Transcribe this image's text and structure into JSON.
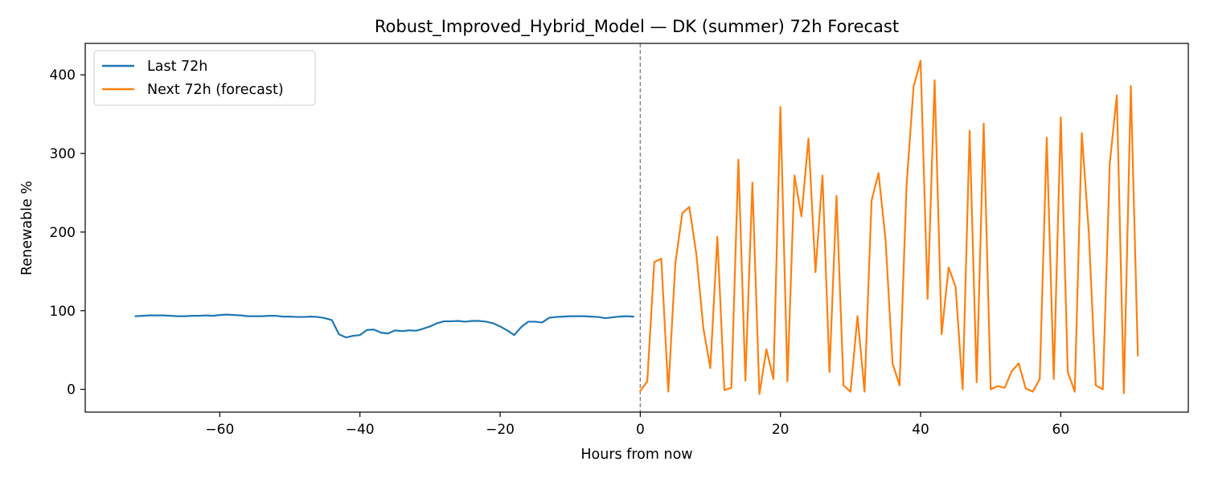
{
  "chart_data": {
    "type": "line",
    "title": "Robust_Improved_Hybrid_Model — DK (summer) 72h Forecast",
    "xlabel": "Hours from now",
    "ylabel": "Renewable %",
    "xlim": [
      -79.2,
      78.2
    ],
    "ylim": [
      -29,
      440
    ],
    "xticks": [
      -60,
      -40,
      -20,
      0,
      20,
      40,
      60
    ],
    "yticks": [
      0,
      100,
      200,
      300,
      400
    ],
    "grid": false,
    "legend_position": "top-left",
    "vline": {
      "x": 0,
      "style": "dashed",
      "color": "#808080"
    },
    "series": [
      {
        "name": "Last 72h",
        "color": "#1f77b4",
        "x": [
          -72,
          -71,
          -70,
          -69,
          -68,
          -67,
          -66,
          -65,
          -64,
          -63,
          -62,
          -61,
          -60,
          -59,
          -58,
          -57,
          -56,
          -55,
          -54,
          -53,
          -52,
          -51,
          -50,
          -49,
          -48,
          -47,
          -46,
          -45,
          -44,
          -43,
          -42,
          -41,
          -40,
          -39,
          -38,
          -37,
          -36,
          -35,
          -34,
          -33,
          -32,
          -31,
          -30,
          -29,
          -28,
          -27,
          -26,
          -25,
          -24,
          -23,
          -22,
          -21,
          -20,
          -19,
          -18,
          -17,
          -16,
          -15,
          -14,
          -13,
          -12,
          -11,
          -10,
          -9,
          -8,
          -7,
          -6,
          -5,
          -4,
          -3,
          -2,
          -1
        ],
        "values": [
          93,
          93.5,
          94,
          94,
          94,
          93.5,
          93,
          93,
          93.5,
          93.5,
          94,
          93.5,
          94.5,
          95,
          94.5,
          94,
          93,
          93,
          93,
          93.5,
          93.5,
          92.5,
          92.5,
          92,
          92,
          92.5,
          92,
          90.5,
          88,
          70,
          66,
          68,
          69,
          75.5,
          76,
          72,
          71,
          75,
          74,
          75,
          74.5,
          77,
          80,
          84,
          86.5,
          86.5,
          87,
          86,
          87,
          87,
          86,
          84,
          80,
          75,
          69,
          79,
          86,
          86,
          85,
          91,
          92,
          92.5,
          93,
          93,
          93,
          92.5,
          92,
          90.5,
          91.5,
          92.5,
          93,
          92.5
        ]
      },
      {
        "name": "Next 72h (forecast)",
        "color": "#ff7f0e",
        "x": [
          0,
          1,
          2,
          3,
          4,
          5,
          6,
          7,
          8,
          9,
          10,
          11,
          12,
          13,
          14,
          15,
          16,
          17,
          18,
          19,
          20,
          21,
          22,
          23,
          24,
          25,
          26,
          27,
          28,
          29,
          30,
          31,
          32,
          33,
          34,
          35,
          36,
          37,
          38,
          39,
          40,
          41,
          42,
          43,
          44,
          45,
          46,
          47,
          48,
          49,
          50,
          51,
          52,
          53,
          54,
          55,
          56,
          57,
          58,
          59,
          60,
          61,
          62,
          63,
          64,
          65,
          66,
          67,
          68,
          69,
          70,
          71
        ],
        "values": [
          -2,
          10,
          162,
          166,
          -3,
          160,
          224,
          232,
          172,
          78,
          27,
          194,
          -1,
          2,
          292,
          11,
          263,
          -6,
          51,
          13,
          359,
          10,
          272,
          220,
          319,
          149,
          272,
          22,
          246,
          5,
          -3,
          93,
          -3,
          240,
          275,
          190,
          33,
          5,
          260,
          385,
          418,
          115,
          393,
          70,
          155,
          130,
          0,
          329,
          9,
          338,
          0,
          4,
          2,
          23,
          33,
          1,
          -3,
          13,
          320,
          13,
          346,
          22,
          -3,
          326,
          200,
          5,
          0,
          288,
          374,
          -5,
          386,
          43
        ]
      }
    ]
  }
}
